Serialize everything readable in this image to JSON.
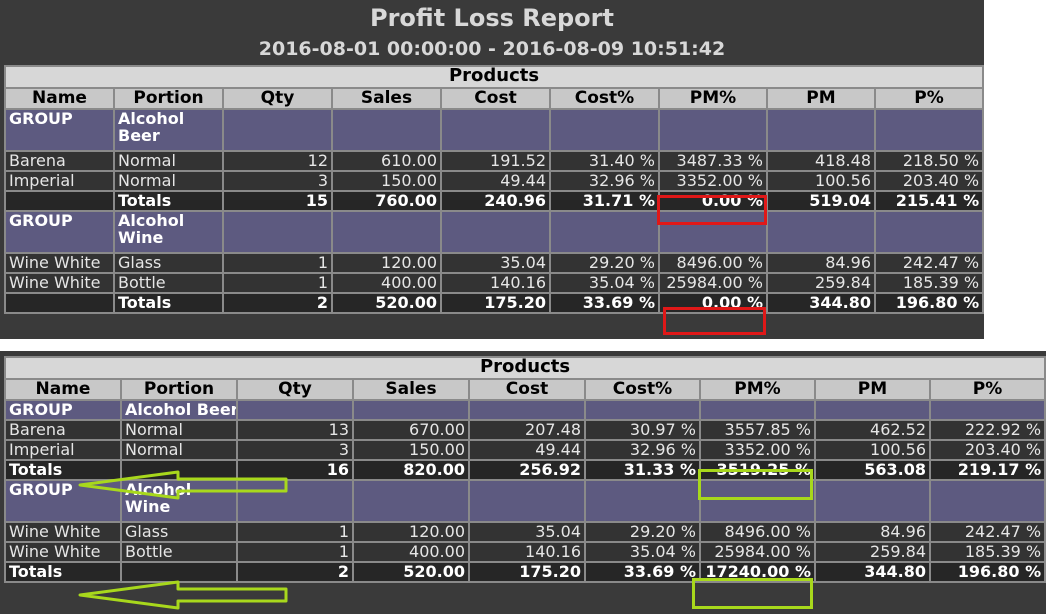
{
  "top": {
    "title": "Profit Loss Report",
    "date_range": "2016-08-01 00:00:00 - 2016-08-09 10:51:42",
    "section_title": "Products",
    "columns": [
      "Name",
      "Portion",
      "Qty",
      "Sales",
      "Cost",
      "Cost%",
      "PM%",
      "PM",
      "P%"
    ],
    "groups": [
      {
        "label": "GROUP",
        "name": "Alcohol Beer",
        "items": [
          [
            "Barena",
            "Normal",
            "12",
            "610.00",
            "191.52",
            "31.40 %",
            "3487.33 %",
            "418.48",
            "218.50 %"
          ],
          [
            "Imperial",
            "Normal",
            "3",
            "150.00",
            "49.44",
            "32.96 %",
            "3352.00 %",
            "100.56",
            "203.40 %"
          ]
        ],
        "totals": [
          "",
          "Totals",
          "15",
          "760.00",
          "240.96",
          "31.71 %",
          "0.00 %",
          "519.04",
          "215.41 %"
        ]
      },
      {
        "label": "GROUP",
        "name": "Alcohol Wine",
        "items": [
          [
            "Wine White",
            "Glass",
            "1",
            "120.00",
            "35.04",
            "29.20 %",
            "8496.00 %",
            "84.96",
            "242.47 %"
          ],
          [
            "Wine White",
            "Bottle",
            "1",
            "400.00",
            "140.16",
            "35.04 %",
            "25984.00 %",
            "259.84",
            "185.39 %"
          ]
        ],
        "totals": [
          "",
          "Totals",
          "2",
          "520.00",
          "175.20",
          "33.69 %",
          "0.00 %",
          "344.80",
          "196.80 %"
        ]
      }
    ],
    "highlight_color": "#e01818"
  },
  "bottom": {
    "section_title": "Products",
    "columns": [
      "Name",
      "Portion",
      "Qty",
      "Sales",
      "Cost",
      "Cost%",
      "PM%",
      "PM",
      "P%"
    ],
    "groups": [
      {
        "label": "GROUP",
        "name": "Alcohol Beer",
        "items": [
          [
            "Barena",
            "Normal",
            "13",
            "670.00",
            "207.48",
            "30.97 %",
            "3557.85 %",
            "462.52",
            "222.92 %"
          ],
          [
            "Imperial",
            "Normal",
            "3",
            "150.00",
            "49.44",
            "32.96 %",
            "3352.00 %",
            "100.56",
            "203.40 %"
          ]
        ],
        "totals": [
          "Totals",
          "",
          "16",
          "820.00",
          "256.92",
          "31.33 %",
          "3519.25 %",
          "563.08",
          "219.17 %"
        ]
      },
      {
        "label": "GROUP",
        "name": "Alcohol Wine",
        "items": [
          [
            "Wine White",
            "Glass",
            "1",
            "120.00",
            "35.04",
            "29.20 %",
            "8496.00 %",
            "84.96",
            "242.47 %"
          ],
          [
            "Wine White",
            "Bottle",
            "1",
            "400.00",
            "140.16",
            "35.04 %",
            "25984.00 %",
            "259.84",
            "185.39 %"
          ]
        ],
        "totals": [
          "Totals",
          "",
          "2",
          "520.00",
          "175.20",
          "33.69 %",
          "17240.00 %",
          "344.80",
          "196.80 %"
        ]
      }
    ],
    "highlight_color": "#a8d81c"
  }
}
